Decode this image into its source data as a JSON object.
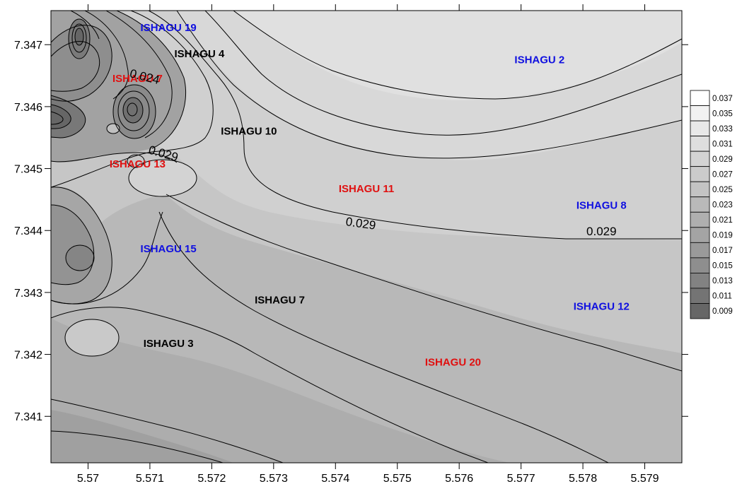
{
  "chart_data": {
    "type": "contour",
    "title": "",
    "xlabel": "",
    "ylabel": "",
    "xlim": [
      5.5694,
      5.5796
    ],
    "ylim": [
      7.34025,
      7.34755
    ],
    "x_ticks": [
      5.57,
      5.571,
      5.572,
      5.573,
      5.574,
      5.575,
      5.576,
      5.577,
      5.578,
      5.579
    ],
    "x_tick_labels": [
      "5.57",
      "5.571",
      "5.572",
      "5.573",
      "5.574",
      "5.575",
      "5.576",
      "5.577",
      "5.578",
      "5.579"
    ],
    "y_ticks": [
      7.341,
      7.342,
      7.343,
      7.344,
      7.345,
      7.346,
      7.347
    ],
    "y_tick_labels": [
      "7.341",
      "7.342",
      "7.343",
      "7.344",
      "7.345",
      "7.346",
      "7.347"
    ],
    "colorbar": {
      "levels": [
        "0.037",
        "0.035",
        "0.033",
        "0.031",
        "0.029",
        "0.027",
        "0.025",
        "0.023",
        "0.021",
        "0.019",
        "0.017",
        "0.015",
        "0.013",
        "0.011",
        "0.009"
      ],
      "colors": [
        "#ffffff",
        "#f2f2f2",
        "#e8e8e8",
        "#dedede",
        "#d3d3d3",
        "#cbcbcb",
        "#c3c3c3",
        "#b9b9b9",
        "#afafaf",
        "#a4a4a4",
        "#9a9a9a",
        "#8e8e8e",
        "#828282",
        "#747474",
        "#666666"
      ]
    },
    "contour_labels": [
      {
        "text": "0.029",
        "x": 5.5744,
        "y": 7.34405,
        "rotation": 8
      },
      {
        "text": "0.029",
        "x": 5.5783,
        "y": 7.34392,
        "rotation": 0
      },
      {
        "text": "0.029",
        "x": 5.5712,
        "y": 7.34518,
        "rotation": 16
      },
      {
        "text": "0.024",
        "x": 5.5709,
        "y": 7.34642,
        "rotation": 14
      }
    ],
    "stations": [
      {
        "name": "ISHAGU 19",
        "x": 5.5713,
        "y": 7.34722,
        "color": "#1010e0"
      },
      {
        "name": "ISHAGU 4",
        "x": 5.5718,
        "y": 7.3468,
        "color": "#000000"
      },
      {
        "name": "ISHAGU 2",
        "x": 5.5773,
        "y": 7.3467,
        "color": "#1010e0"
      },
      {
        "name": "ISHAGU 7",
        "x": 5.5708,
        "y": 7.3464,
        "color": "#e01010"
      },
      {
        "name": "ISHAGU 10",
        "x": 5.5726,
        "y": 7.34555,
        "color": "#000000"
      },
      {
        "name": "ISHAGU 13",
        "x": 5.5708,
        "y": 7.34502,
        "color": "#e01010"
      },
      {
        "name": "ISHAGU 11",
        "x": 5.5745,
        "y": 7.34462,
        "color": "#e01010"
      },
      {
        "name": "ISHAGU 8",
        "x": 5.5783,
        "y": 7.34435,
        "color": "#1010e0"
      },
      {
        "name": "ISHAGU 15",
        "x": 5.5713,
        "y": 7.34365,
        "color": "#1010e0"
      },
      {
        "name": "ISHAGU 7",
        "x": 5.5731,
        "y": 7.34282,
        "color": "#000000"
      },
      {
        "name": "ISHAGU 12",
        "x": 5.5783,
        "y": 7.34272,
        "color": "#1010e0"
      },
      {
        "name": "ISHAGU 3",
        "x": 5.5713,
        "y": 7.34212,
        "color": "#000000"
      },
      {
        "name": "ISHAGU 20",
        "x": 5.5759,
        "y": 7.34182,
        "color": "#e01010"
      }
    ]
  }
}
